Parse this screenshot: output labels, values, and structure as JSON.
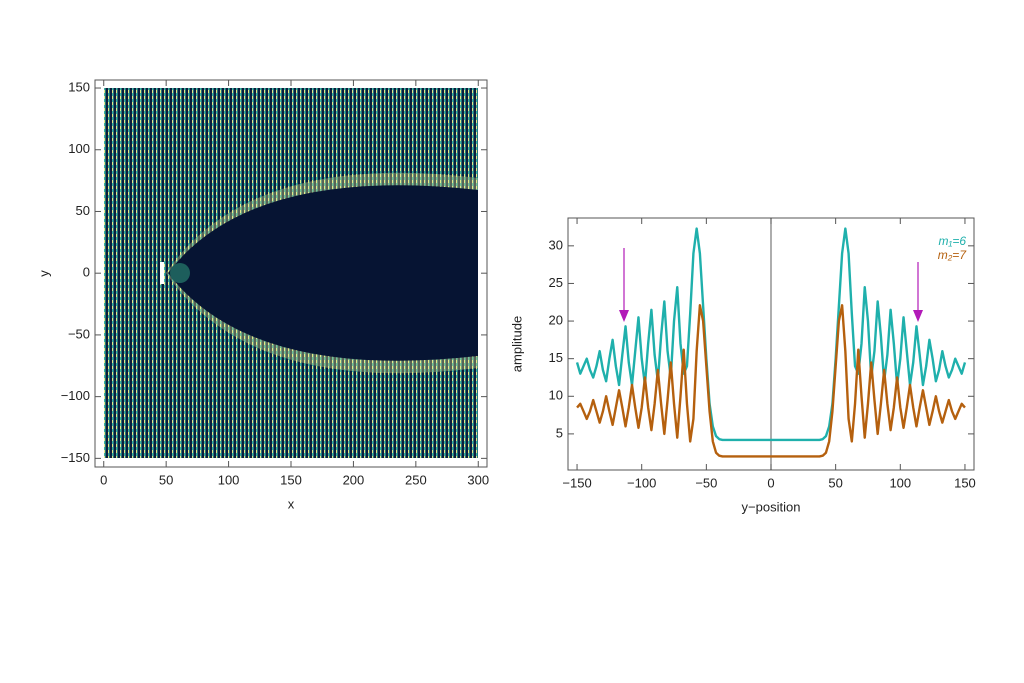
{
  "chart_data": [
    {
      "type": "heatmap",
      "xlabel": "x",
      "ylabel": "y",
      "xlim": [
        -7,
        307
      ],
      "ylim": [
        -157,
        156.5
      ],
      "xticks": [
        0,
        50,
        100,
        150,
        200,
        250,
        300
      ],
      "yticks": [
        {
          "value": -150,
          "label": "−150"
        },
        {
          "value": -100,
          "label": "−100"
        },
        {
          "value": -50,
          "label": "−50"
        },
        0,
        50,
        100,
        150
      ]
    },
    {
      "type": "line",
      "xlabel": "y−position",
      "ylabel": "amplitude",
      "xlim": [
        -157,
        157
      ],
      "ylim": [
        0.2,
        33.7
      ],
      "xticks": [
        {
          "value": -150,
          "label": "−150"
        },
        {
          "value": -100,
          "label": "−100"
        },
        {
          "value": -50,
          "label": "−50"
        },
        0,
        50,
        100,
        150
      ],
      "yticks": [
        5,
        10,
        15,
        20,
        25,
        30
      ],
      "legend": "upper right",
      "x": [
        -150,
        -147.5,
        -145,
        -142.5,
        -140,
        -137.5,
        -135,
        -132.5,
        -130,
        -127.5,
        -125,
        -122.5,
        -120,
        -117.5,
        -115,
        -112.5,
        -110,
        -107.5,
        -105,
        -102.5,
        -100,
        -97.5,
        -95,
        -92.5,
        -90,
        -87.5,
        -85,
        -82.5,
        -80,
        -77.5,
        -75,
        -72.5,
        -70,
        -67.5,
        -65,
        -62.5,
        -60,
        -57.5,
        -55,
        -52.5,
        -50,
        -47.5,
        -45,
        -42.5,
        -40,
        -37.5,
        -35,
        -32.5,
        -30,
        -27.5,
        -25,
        -22.5,
        -20,
        -17.5,
        -15,
        -12.5,
        -10,
        -7.5,
        -5,
        -2.5,
        0,
        2.5,
        5,
        7.5,
        10,
        12.5,
        15,
        17.5,
        20,
        22.5,
        25,
        27.5,
        30,
        32.5,
        35,
        37.5,
        40,
        42.5,
        45,
        47.5,
        50,
        52.5,
        55,
        57.5,
        60,
        62.5,
        65,
        67.5,
        70,
        72.5,
        75,
        77.5,
        80,
        82.5,
        85,
        87.5,
        90,
        92.5,
        95,
        97.5,
        100,
        102.5,
        105,
        107.5,
        110,
        112.5,
        115,
        117.5,
        120,
        122.5,
        125,
        127.5,
        130,
        132.5,
        135,
        137.5,
        140,
        142.5,
        145,
        147.5,
        150
      ],
      "series": [
        {
          "name": "m₁=6",
          "color": "#1fb0ac",
          "values": [
            14.5,
            13,
            14,
            15,
            13.5,
            12.5,
            14,
            16,
            13.5,
            12,
            15,
            17.5,
            14,
            11.5,
            15.5,
            19.3,
            14.5,
            11.5,
            16,
            20.5,
            15,
            11.5,
            17,
            21.5,
            15.5,
            12,
            18,
            22.6,
            16,
            12.5,
            20,
            24.5,
            17,
            13,
            14,
            21,
            29,
            32.3,
            29,
            22,
            15,
            9,
            6,
            4.7,
            4.3,
            4.2,
            4.2,
            4.2,
            4.2,
            4.2,
            4.2,
            4.2,
            4.2,
            4.2,
            4.2,
            4.2,
            4.2,
            4.2,
            4.2,
            4.2,
            4.2,
            4.2,
            4.2,
            4.2,
            4.2,
            4.2,
            4.2,
            4.2,
            4.2,
            4.2,
            4.2,
            4.2,
            4.2,
            4.2,
            4.2,
            4.2,
            4.3,
            4.7,
            6,
            9,
            15,
            22,
            29,
            32.3,
            29,
            21,
            14,
            13,
            17,
            24.5,
            20,
            12.5,
            16,
            22.6,
            18,
            12,
            15.5,
            21.5,
            17,
            11.5,
            15,
            20.5,
            16,
            11.5,
            14.5,
            19.3,
            15.5,
            11.5,
            14,
            17.5,
            15,
            12,
            13.5,
            16,
            14,
            12.5,
            13.5,
            15,
            14,
            13,
            14.5
          ]
        },
        {
          "name": "m₂=7",
          "color": "#b5600e",
          "values": [
            8.5,
            9,
            8,
            7,
            8,
            9.5,
            8,
            6.5,
            8,
            10,
            8,
            6.2,
            8.5,
            10.8,
            8.5,
            6,
            8.5,
            11.5,
            8.5,
            5.8,
            8.5,
            12.5,
            8.5,
            5.5,
            9,
            13.5,
            9,
            5,
            9.5,
            14.5,
            9,
            4.5,
            10,
            16.2,
            9,
            4,
            7,
            16,
            22.1,
            20,
            14,
            8,
            4,
            2.5,
            2.1,
            2,
            2,
            2,
            2,
            2,
            2,
            2,
            2,
            2,
            2,
            2,
            2,
            2,
            2,
            2,
            2,
            2,
            2,
            2,
            2,
            2,
            2,
            2,
            2,
            2,
            2,
            2,
            2,
            2,
            2,
            2,
            2.1,
            2.5,
            4,
            8,
            14,
            20,
            22.1,
            16,
            7,
            4,
            9,
            16.2,
            10,
            4.5,
            9,
            14.5,
            9.5,
            5,
            9,
            13.5,
            9,
            5.5,
            8.5,
            12.5,
            8.5,
            5.8,
            8.5,
            11.5,
            8.5,
            6,
            8.5,
            10.8,
            8.5,
            6.2,
            8,
            10,
            8,
            6.5,
            8,
            9.5,
            8,
            7,
            8,
            9,
            8.5
          ]
        }
      ]
    }
  ]
}
